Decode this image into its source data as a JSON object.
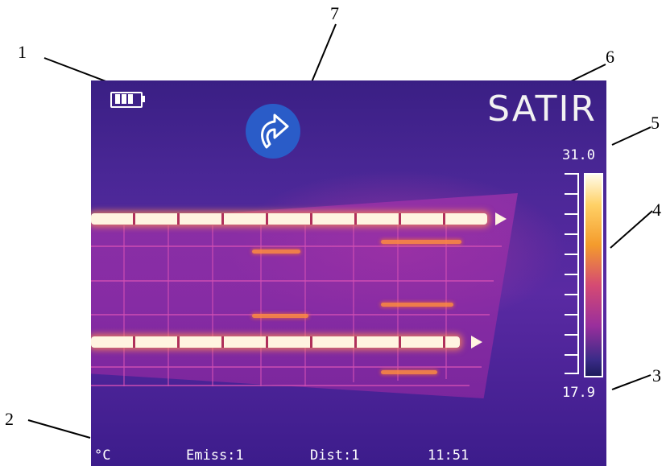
{
  "callouts": [
    "1",
    "2",
    "3",
    "4",
    "5",
    "6",
    "7"
  ],
  "brand": "SATIR",
  "temperature_scale": {
    "max": "31.0",
    "min": "17.9",
    "palette": "iron"
  },
  "unit_label": "°C",
  "status_bar": {
    "emissivity": "Emiss:1",
    "distance": "Dist:1",
    "time": "11:51"
  },
  "icons": {
    "battery": "battery-icon",
    "action": "curved-arrow-icon"
  },
  "colors": {
    "background": "#4a2796",
    "brand_text": "#f2f2f2",
    "action_button": "#2a5cc8"
  }
}
